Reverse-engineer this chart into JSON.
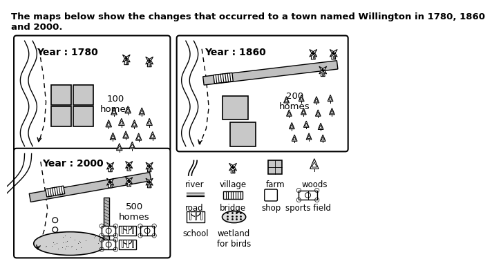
{
  "title_line1": "The maps below show the changes that occurred to a town named Willington in 1780, 1860",
  "title_line2": "and 2000.",
  "bg_color": "#ffffff",
  "map1_year": "Year : 1780",
  "map2_year": "Year : 1860",
  "map3_year": "Year : 2000",
  "map1_homes": "100\nhomes",
  "map2_homes": "200\nhomes",
  "map3_homes": "500\nhomes",
  "farm_color": "#c8c8c8",
  "road_color": "#c0c0c0",
  "wetland_color": "#d0d0d0"
}
